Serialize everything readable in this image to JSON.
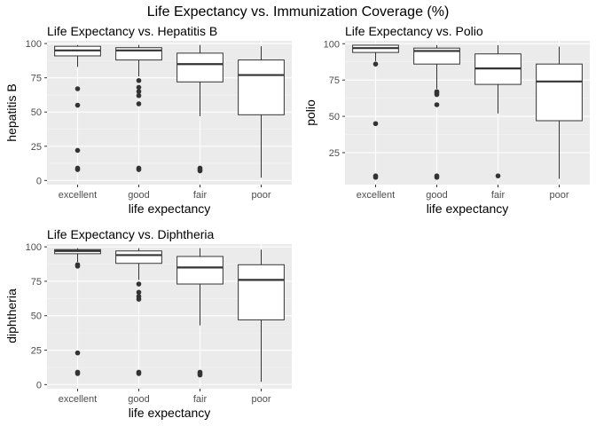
{
  "figure": {
    "title": "Life Expectancy vs. Immunization Coverage (%)"
  },
  "chart_data": [
    {
      "type": "box",
      "title": "Life Expectancy vs. Hepatitis B",
      "xlabel": "life expectancy",
      "ylabel": "hepatitis B",
      "ylim": [
        -3,
        102
      ],
      "yticks": [
        0,
        25,
        50,
        75,
        100
      ],
      "categories": [
        "excellent",
        "good",
        "fair",
        "poor"
      ],
      "boxes": [
        {
          "category": "excellent",
          "low": 83,
          "q1": 91,
          "median": 95,
          "q3": 98,
          "high": 99,
          "outliers": [
            67,
            55,
            22,
            9,
            8
          ]
        },
        {
          "category": "good",
          "low": 76,
          "q1": 88,
          "median": 95,
          "q3": 97,
          "high": 99,
          "outliers": [
            73,
            68,
            65,
            62,
            56,
            9,
            8
          ]
        },
        {
          "category": "fair",
          "low": 47,
          "q1": 72,
          "median": 85,
          "q3": 93,
          "high": 99,
          "outliers": [
            9,
            8,
            7
          ]
        },
        {
          "category": "poor",
          "low": 2,
          "q1": 48,
          "median": 77,
          "q3": 88,
          "high": 98,
          "outliers": []
        }
      ]
    },
    {
      "type": "box",
      "title": "Life Expectancy vs. Polio",
      "xlabel": "life expectancy",
      "ylabel": "polio",
      "ylim": [
        3,
        102
      ],
      "yticks": [
        25,
        50,
        75,
        100
      ],
      "categories": [
        "excellent",
        "good",
        "fair",
        "poor"
      ],
      "boxes": [
        {
          "category": "excellent",
          "low": 88,
          "q1": 94,
          "median": 97,
          "q3": 99,
          "high": 99,
          "outliers": [
            86,
            45,
            9,
            8
          ]
        },
        {
          "category": "good",
          "low": 69,
          "q1": 86,
          "median": 95,
          "q3": 97,
          "high": 99,
          "outliers": [
            67,
            66,
            65,
            58,
            9,
            8
          ]
        },
        {
          "category": "fair",
          "low": 52,
          "q1": 72,
          "median": 83,
          "q3": 93,
          "high": 99,
          "outliers": [
            9
          ]
        },
        {
          "category": "poor",
          "low": 7,
          "q1": 47,
          "median": 74,
          "q3": 86,
          "high": 98,
          "outliers": []
        }
      ]
    },
    {
      "type": "box",
      "title": "Life Expectancy vs. Diphtheria",
      "xlabel": "life expectancy",
      "ylabel": "diphtheria",
      "ylim": [
        -3,
        102
      ],
      "yticks": [
        0,
        25,
        50,
        75,
        100
      ],
      "categories": [
        "excellent",
        "good",
        "fair",
        "poor"
      ],
      "boxes": [
        {
          "category": "excellent",
          "low": 89,
          "q1": 95,
          "median": 97,
          "q3": 98,
          "high": 99,
          "outliers": [
            87,
            86,
            23,
            9,
            8
          ]
        },
        {
          "category": "good",
          "low": 76,
          "q1": 88,
          "median": 94,
          "q3": 97,
          "high": 99,
          "outliers": [
            73,
            67,
            64,
            62,
            9,
            8
          ]
        },
        {
          "category": "fair",
          "low": 43,
          "q1": 73,
          "median": 85,
          "q3": 93,
          "high": 99,
          "outliers": [
            9,
            8,
            7
          ]
        },
        {
          "category": "poor",
          "low": 2,
          "q1": 47,
          "median": 76,
          "q3": 87,
          "high": 98,
          "outliers": []
        }
      ]
    }
  ]
}
